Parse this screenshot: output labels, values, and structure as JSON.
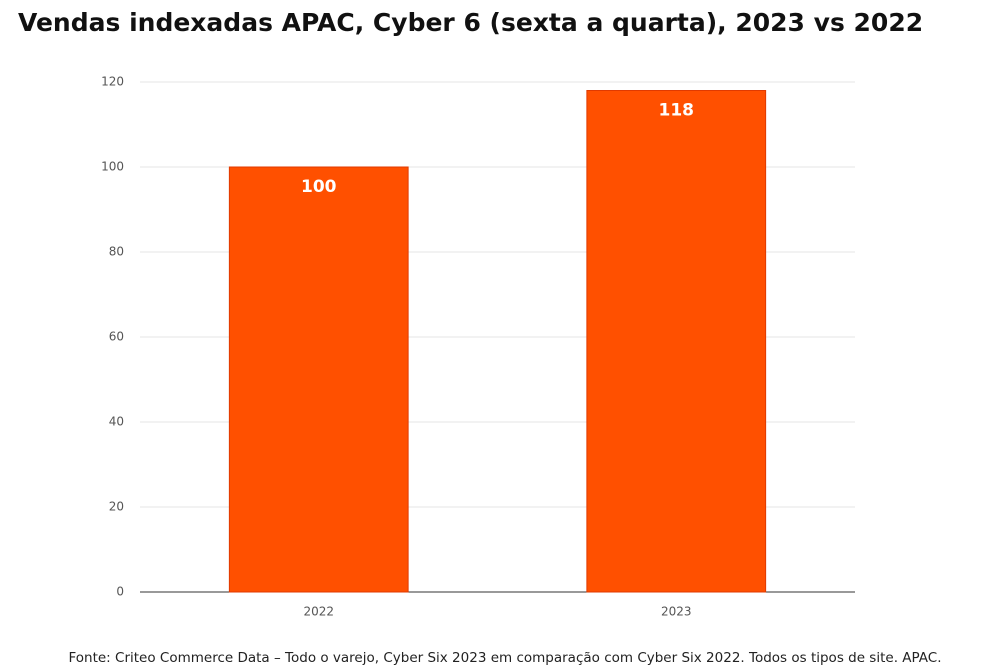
{
  "chart_data": {
    "type": "bar",
    "title": "Vendas indexadas APAC, Cyber 6 (sexta a quarta), 2023 vs 2022",
    "categories": [
      "2022",
      "2023"
    ],
    "values": [
      100,
      118
    ],
    "color": "#ff5000",
    "ylim": [
      0,
      120
    ],
    "yticks": [
      0,
      20,
      40,
      60,
      80,
      100,
      120
    ],
    "grid": true,
    "source": "Fonte: Criteo Commerce Data – Todo o varejo, Cyber Six 2023 em comparação com Cyber Six 2022. Todos os tipos de site. APAC."
  }
}
